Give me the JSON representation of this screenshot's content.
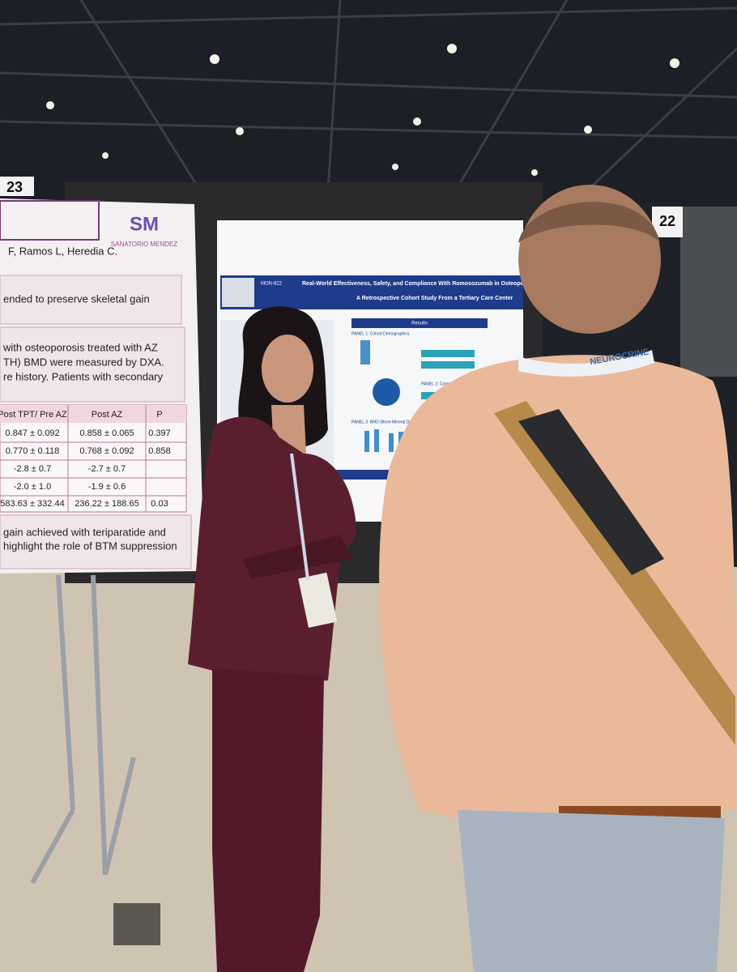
{
  "board_numbers": [
    "23",
    "22"
  ],
  "left_poster": {
    "logo": "SM",
    "logo_caption": "SANATORIO MENDEZ",
    "authors": "F, Ramos L, Heredia C.",
    "objective": "ended to preserve skeletal gain",
    "methods": [
      "with osteoporosis treated with AZ",
      "TH) BMD were measured by DXA.",
      "re history. Patients with secondary"
    ],
    "table": {
      "header": [
        "Post TPT/ Pre AZ",
        "Post AZ",
        "P"
      ],
      "rows": [
        [
          "0.847 ± 0.092",
          "0.858 ± 0.065",
          "0.397"
        ],
        [
          "0.770 ± 0.118",
          "0.768 ± 0.092",
          "0.858"
        ],
        [
          "-2.8 ± 0.7",
          "-2.7 ± 0.7"
        ],
        [
          "-2.0 ± 1.0",
          "-1.9 ± 0.6"
        ],
        [
          "583.63 ± 332.44",
          "236.22 ± 188.65",
          "0.03"
        ]
      ]
    },
    "conclusion": [
      "gain achieved with teriparatide and",
      "highlight the role of BTM suppression"
    ]
  },
  "right_poster": {
    "code": "MON-822",
    "title": "Real-World Effectiveness, Safety, and Compliance With Romosozumab in Osteopo",
    "subtitle": "A Retrospective Cohort Study From a Tertiary Care Center",
    "section": "Results",
    "panels": [
      "PANEL 1: Cohort Demographics",
      "PANEL 2: Compliance Rate",
      "PANEL 3: BMD (Bone Mineral Density) Changes — Before and After Treatment"
    ]
  },
  "lanyard": "NEUROCRINE"
}
